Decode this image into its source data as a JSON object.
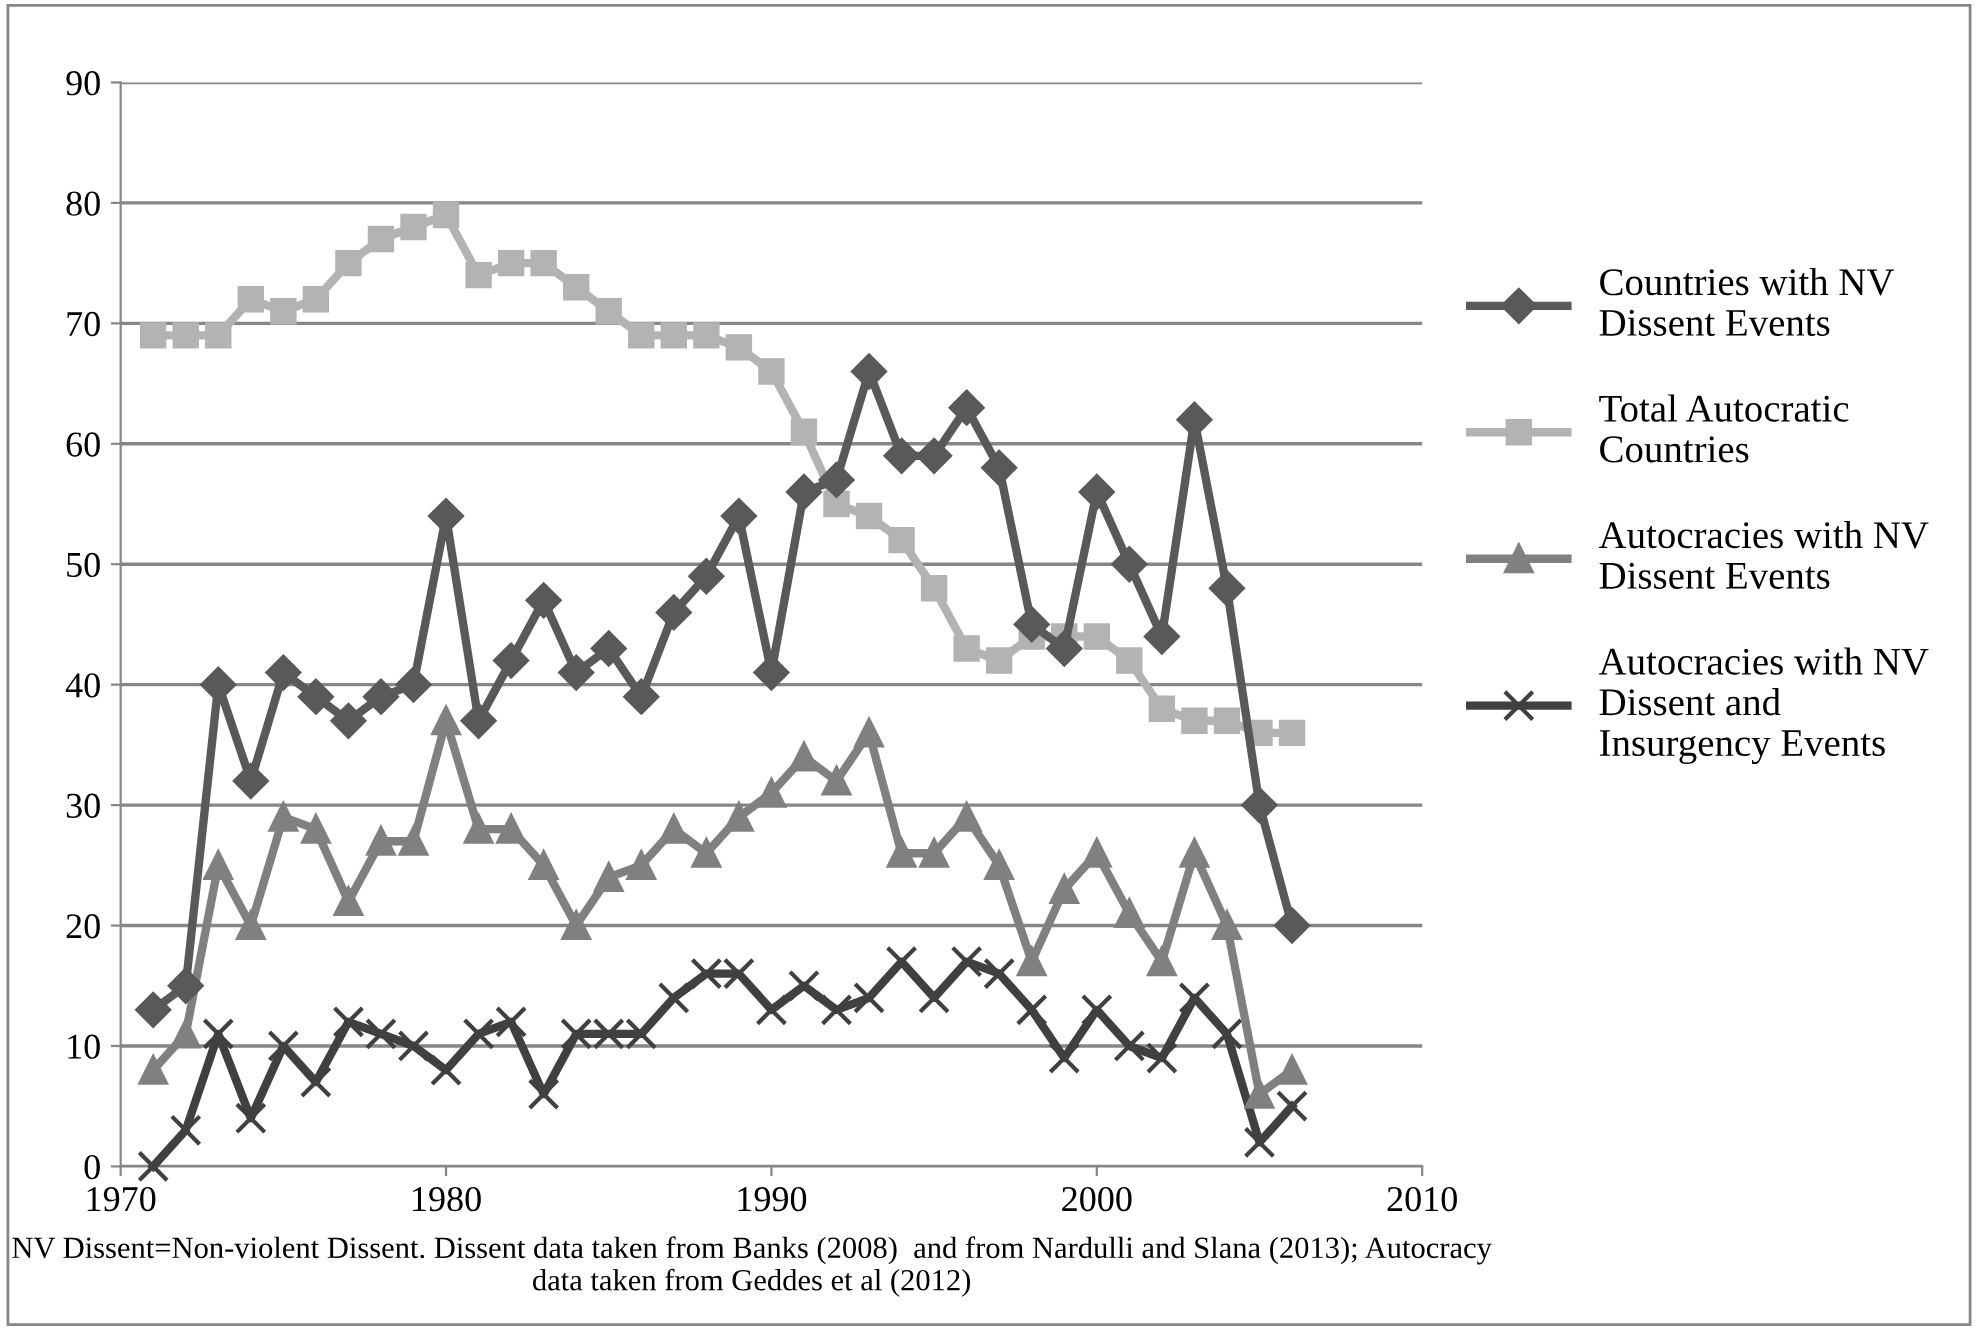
{
  "chart_data": {
    "type": "line",
    "x": [
      1971,
      1972,
      1973,
      1974,
      1975,
      1976,
      1977,
      1978,
      1979,
      1980,
      1981,
      1982,
      1983,
      1984,
      1985,
      1986,
      1987,
      1988,
      1989,
      1990,
      1991,
      1992,
      1993,
      1994,
      1995,
      1996,
      1997,
      1998,
      1999,
      2000,
      2001,
      2002,
      2003,
      2004,
      2005,
      2006
    ],
    "series": [
      {
        "name": "Countries with NV Dissent Events",
        "color": "#595959",
        "marker": "diamond",
        "values": [
          13,
          15,
          40,
          32,
          41,
          39,
          37,
          39,
          40,
          54,
          37,
          42,
          47,
          41,
          43,
          39,
          46,
          49,
          54,
          41,
          56,
          57,
          66,
          59,
          59,
          63,
          58,
          45,
          43,
          56,
          50,
          44,
          62,
          48,
          30,
          20
        ]
      },
      {
        "name": "Total Autocratic Countries",
        "color": "#b3b3b3",
        "marker": "square",
        "values": [
          69,
          69,
          69,
          72,
          71,
          72,
          75,
          77,
          78,
          79,
          74,
          75,
          75,
          73,
          71,
          69,
          69,
          69,
          68,
          66,
          61,
          55,
          54,
          52,
          48,
          43,
          42,
          44,
          44,
          44,
          42,
          38,
          37,
          37,
          36,
          36
        ]
      },
      {
        "name": "Autocracies with NV Dissent Events",
        "color": "#808080",
        "marker": "triangle",
        "values": [
          8,
          11,
          25,
          20,
          29,
          28,
          22,
          27,
          27,
          37,
          28,
          28,
          25,
          20,
          24,
          25,
          28,
          26,
          29,
          31,
          34,
          32,
          36,
          26,
          26,
          29,
          25,
          17,
          23,
          26,
          21,
          17,
          26,
          20,
          6,
          8
        ]
      },
      {
        "name": "Autocracies with NV Dissent and Insurgency Events",
        "color": "#404040",
        "marker": "cross",
        "values": [
          0,
          3,
          11,
          4,
          10,
          7,
          12,
          11,
          10,
          8,
          11,
          12,
          6,
          11,
          11,
          11,
          14,
          16,
          16,
          13,
          15,
          13,
          14,
          17,
          14,
          17,
          16,
          13,
          9,
          13,
          10,
          9,
          14,
          11,
          2,
          5
        ]
      }
    ],
    "xlim": [
      1970,
      2010
    ],
    "xticks": [
      1970,
      1980,
      1990,
      2000,
      2010
    ],
    "ylim": [
      0,
      90
    ],
    "yticks": [
      0,
      10,
      20,
      30,
      40,
      50,
      60,
      70,
      80,
      90
    ],
    "grid": "y",
    "legend": "right",
    "annotations": [
      "NV Dissent=Non-violent Dissent. Dissent data taken from Banks (2008)  and from Nardulli and Slana (2013); Autocracy data taken from Geddes et al (2012)"
    ]
  }
}
